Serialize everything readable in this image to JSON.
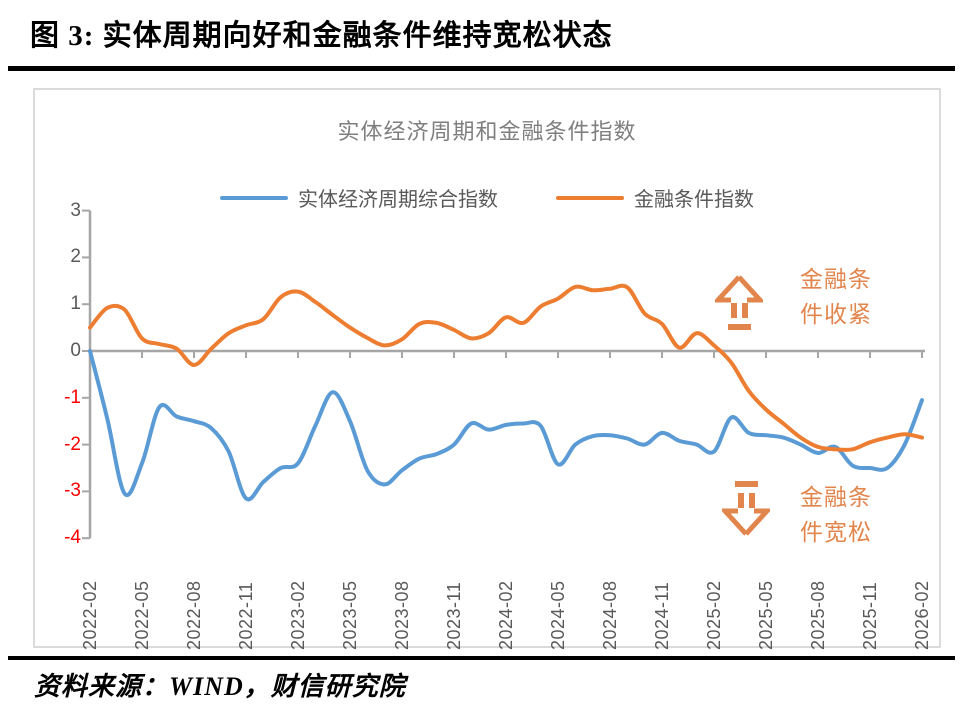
{
  "figure": {
    "caption": "图 3:  实体周期向好和金融条件维持宽松状态",
    "source": "资料来源：WIND，财信研究院"
  },
  "chart": {
    "title": "实体经济周期和金融条件指数",
    "annotation_tighten": "金融条\n件收紧",
    "annotation_loosen": "金融条\n件宽松"
  },
  "colors": {
    "blue": "#5B9BD5",
    "orange": "#ED7D31",
    "annotation_orange": "#E2854C",
    "axis_gray": "#A6A6A6",
    "label_gray": "#595959",
    "title_gray": "#7F7F7F",
    "negative_red": "#FF0000"
  },
  "chart_data": {
    "type": "line",
    "title": "实体经济周期和金融条件指数",
    "smooth": true,
    "grid": false,
    "legend_position": "top",
    "ylim": [
      -4,
      3
    ],
    "yticks": [
      3,
      2,
      1,
      0,
      -1,
      -2,
      -3,
      -4
    ],
    "x": [
      "2022-02",
      "2022-03",
      "2022-04",
      "2022-05",
      "2022-06",
      "2022-07",
      "2022-08",
      "2022-09",
      "2022-10",
      "2022-11",
      "2022-12",
      "2023-01",
      "2023-02",
      "2023-03",
      "2023-04",
      "2023-05",
      "2023-06",
      "2023-07",
      "2023-08",
      "2023-09",
      "2023-10",
      "2023-11",
      "2023-12",
      "2024-01",
      "2024-02",
      "2024-03",
      "2024-04",
      "2024-05",
      "2024-06",
      "2024-07",
      "2024-08",
      "2024-09",
      "2024-10",
      "2024-11",
      "2024-12",
      "2025-01",
      "2025-02",
      "2025-03",
      "2025-04",
      "2025-05",
      "2025-06",
      "2025-07",
      "2025-08",
      "2025-09",
      "2025-10",
      "2025-11",
      "2025-12",
      "2026-01",
      "2026-02"
    ],
    "x_tick_labels": [
      "2022-02",
      "2022-05",
      "2022-08",
      "2022-11",
      "2023-02",
      "2023-05",
      "2023-08",
      "2023-11",
      "2024-02",
      "2024-05",
      "2024-08",
      "2024-11",
      "2025-02",
      "2025-05",
      "2025-08",
      "2025-11",
      "2026-02"
    ],
    "series": [
      {
        "name": "实体经济周期综合指数",
        "color": "#5B9BD5",
        "values": [
          0.0,
          -1.45,
          -3.05,
          -2.4,
          -1.2,
          -1.4,
          -1.5,
          -1.65,
          -2.15,
          -3.15,
          -2.8,
          -2.5,
          -2.4,
          -1.6,
          -0.88,
          -1.5,
          -2.55,
          -2.85,
          -2.55,
          -2.3,
          -2.2,
          -2.0,
          -1.55,
          -1.68,
          -1.58,
          -1.55,
          -1.6,
          -2.42,
          -2.0,
          -1.82,
          -1.8,
          -1.87,
          -2.0,
          -1.75,
          -1.92,
          -2.0,
          -2.15,
          -1.42,
          -1.75,
          -1.8,
          -1.85,
          -2.0,
          -2.18,
          -2.05,
          -2.45,
          -2.5,
          -2.5,
          -2.0,
          -1.05
        ]
      },
      {
        "name": "金融条件指数",
        "color": "#ED7D31",
        "values": [
          0.5,
          0.92,
          0.88,
          0.27,
          0.15,
          0.05,
          -0.3,
          0.05,
          0.38,
          0.55,
          0.68,
          1.15,
          1.27,
          1.05,
          0.77,
          0.5,
          0.28,
          0.12,
          0.25,
          0.58,
          0.6,
          0.45,
          0.27,
          0.38,
          0.72,
          0.6,
          0.95,
          1.12,
          1.37,
          1.3,
          1.33,
          1.36,
          0.8,
          0.58,
          0.07,
          0.38,
          0.12,
          -0.25,
          -0.85,
          -1.25,
          -1.55,
          -1.85,
          -2.05,
          -2.1,
          -2.1,
          -1.95,
          -1.85,
          -1.78,
          -1.85
        ]
      }
    ]
  }
}
